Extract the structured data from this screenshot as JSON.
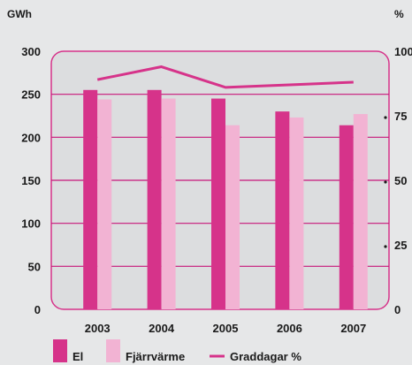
{
  "chart_data": {
    "type": "bar",
    "categories": [
      "2003",
      "2004",
      "2005",
      "2006",
      "2007"
    ],
    "series": [
      {
        "name": "El",
        "values": [
          255,
          255,
          245,
          230,
          214
        ],
        "color": "#d6338a",
        "axis": "left"
      },
      {
        "name": "Fjärrvärme",
        "values": [
          244,
          245,
          214,
          223,
          227
        ],
        "color": "#f2b3d3",
        "axis": "left"
      },
      {
        "name": "Graddagar %",
        "type": "line",
        "values": [
          89,
          94,
          86,
          87,
          88
        ],
        "color": "#d6338a",
        "axis": "right"
      }
    ],
    "ylabel": "GWh",
    "ylim": [
      0,
      300
    ],
    "yticks": [
      "0",
      "50",
      "100",
      "150",
      "200",
      "250",
      "300"
    ],
    "y2label": "%",
    "y2lim": [
      0,
      100
    ],
    "y2ticks": [
      "0",
      "25",
      "50",
      "75",
      "100"
    ],
    "grid": true,
    "legend": "bottom-left",
    "colors": {
      "background": "#e6e7e8",
      "plot_background": "#dcdddf",
      "grid": "#c7177a",
      "frame": "#d6338a"
    }
  }
}
